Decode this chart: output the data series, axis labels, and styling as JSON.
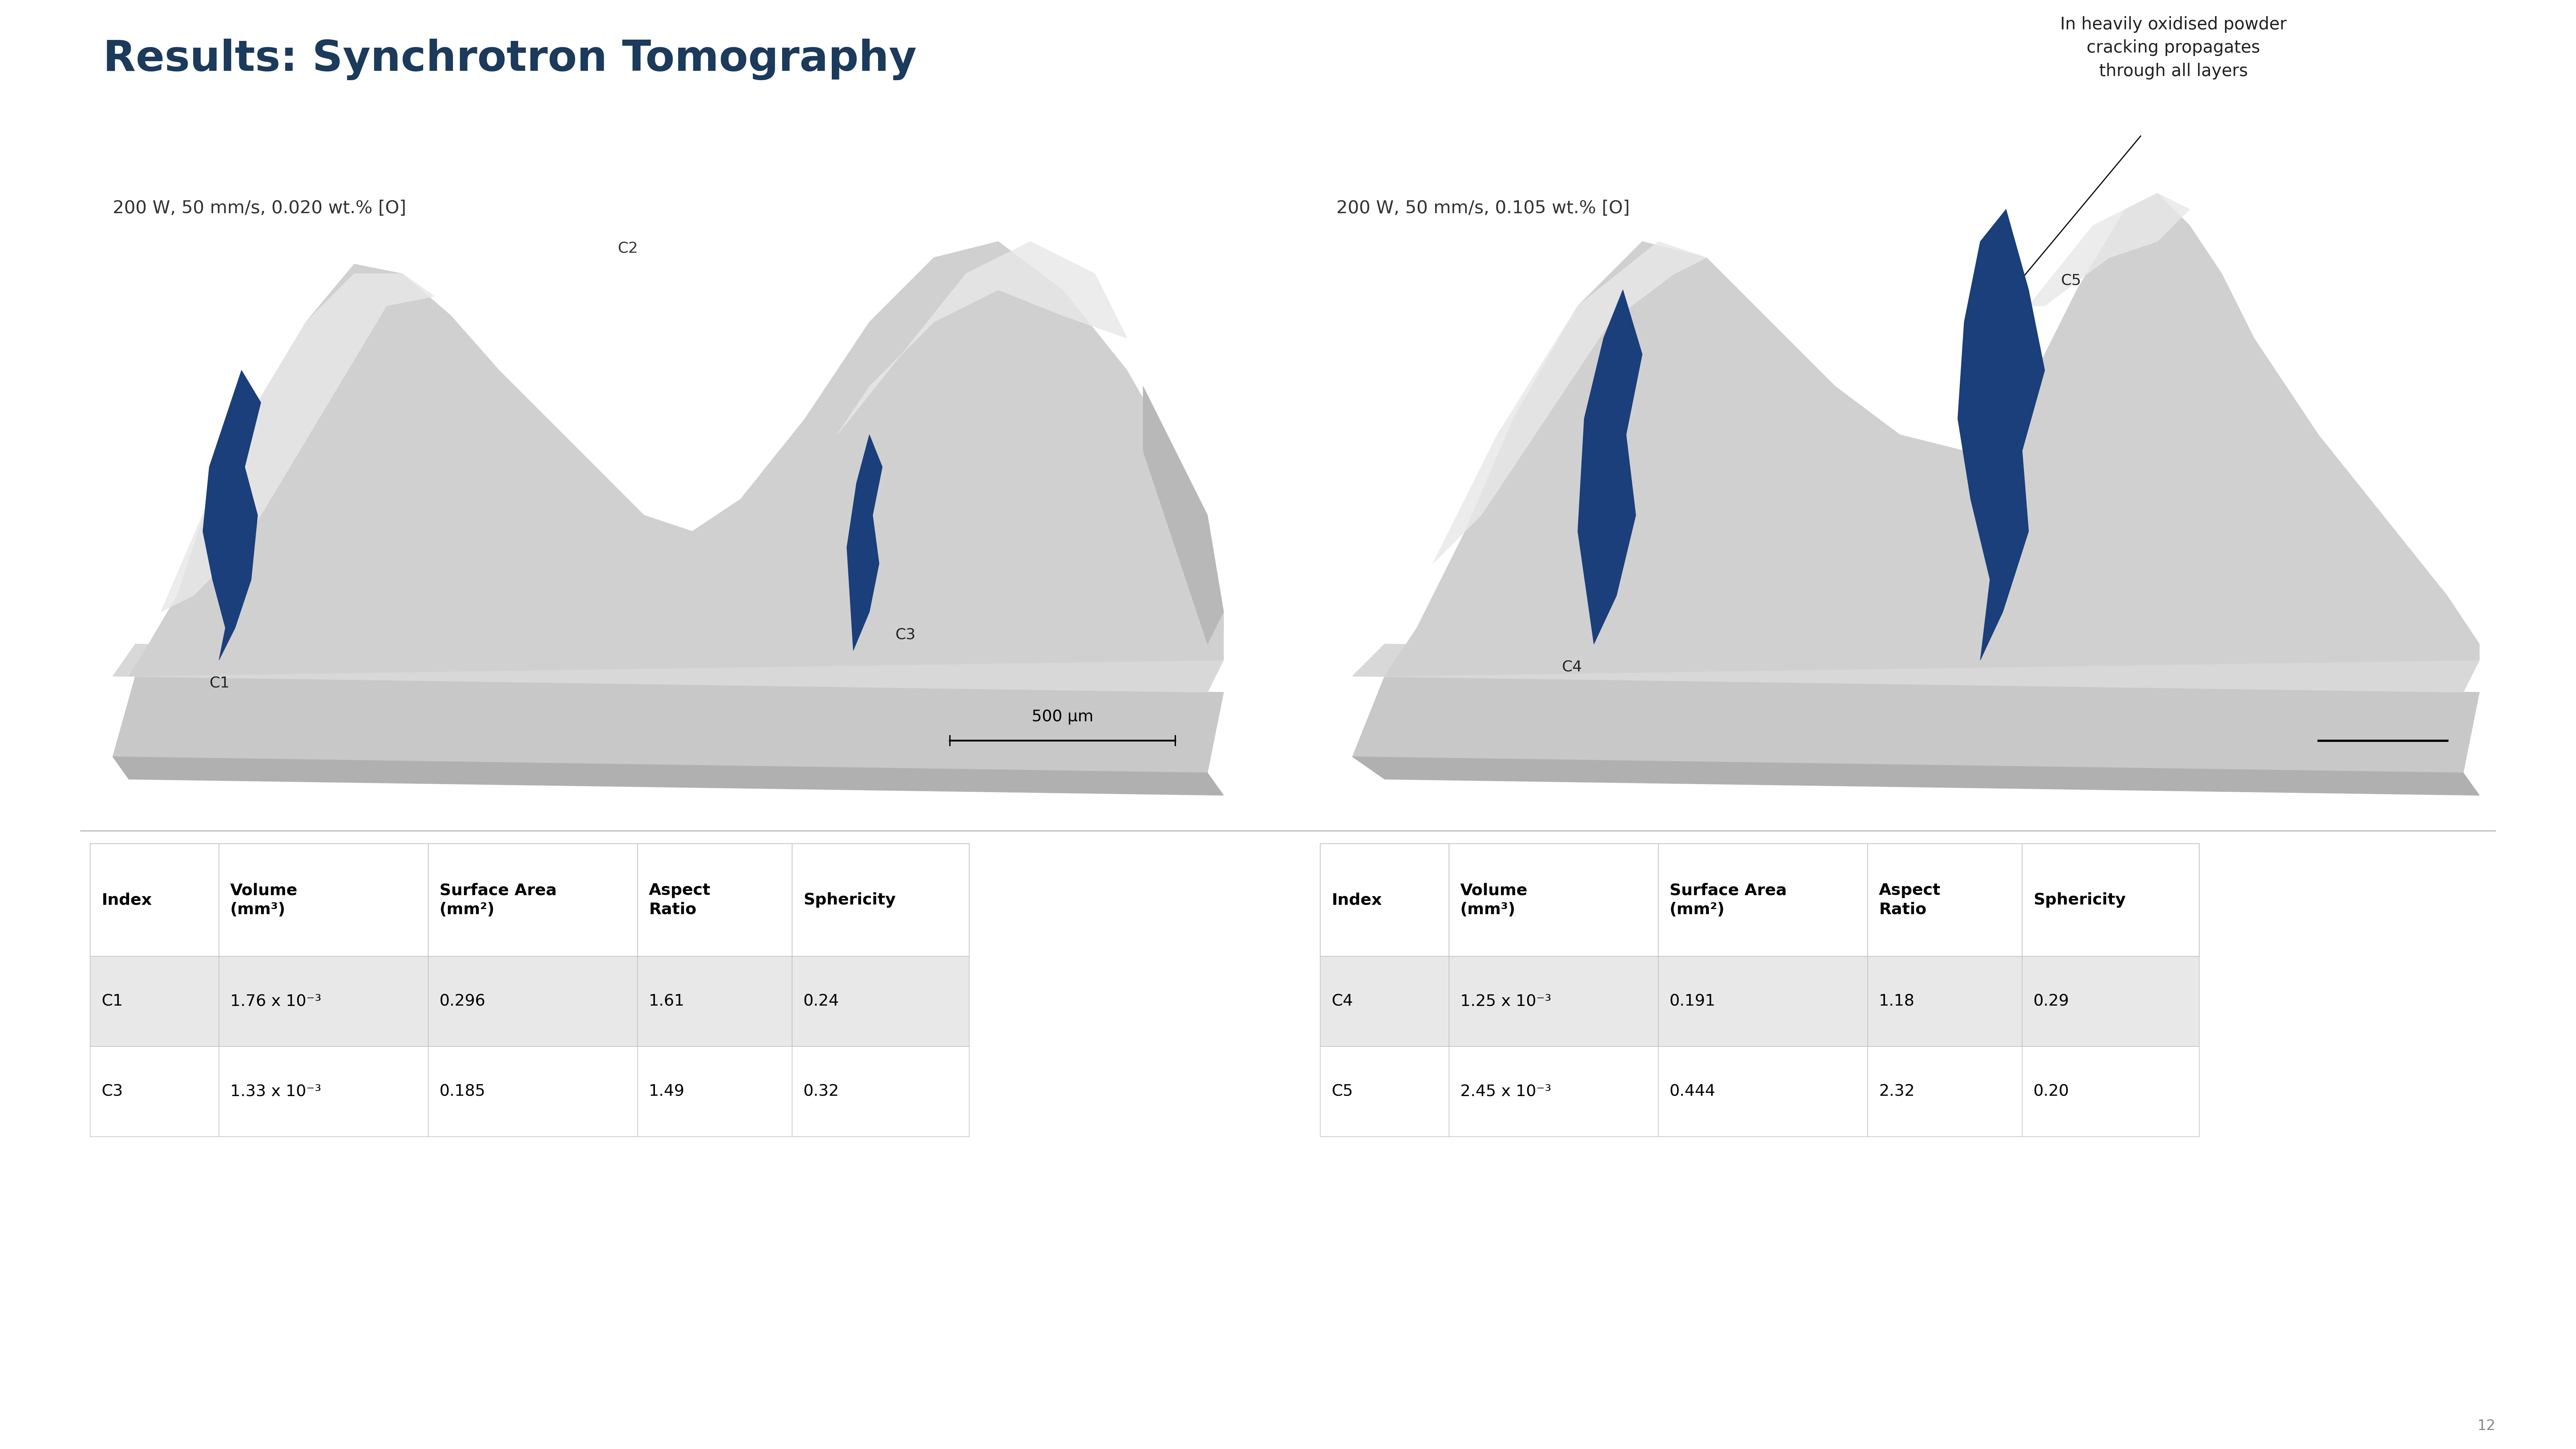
{
  "title": "Results: Synchrotron Tomography",
  "title_color": "#1b3a5c",
  "title_fontsize": 95,
  "bg_color": "#ffffff",
  "label_left": "200 W, 50 mm/s, 0.020 wt.% [O]",
  "label_right": "200 W, 50 mm/s, 0.105 wt.% [O]",
  "label_fontsize": 40,
  "label_color": "#333333",
  "annotation_text": "In heavily oxidised powder\ncracking propagates\nthrough all layers",
  "annotation_fontsize": 38,
  "annotation_color": "#222222",
  "scale_bar_left_text": "500 μm",
  "scale_bar_fontsize": 36,
  "table_header": [
    "Index",
    "Volume\n(mm³)",
    "Surface Area\n(mm²)",
    "Aspect\nRatio",
    "Sphericity"
  ],
  "table_left_data": [
    [
      "C1",
      "1.76 x 10⁻³",
      "0.296",
      "1.61",
      "0.24"
    ],
    [
      "C3",
      "1.33 x 10⁻³",
      "0.185",
      "1.49",
      "0.32"
    ]
  ],
  "table_right_data": [
    [
      "C4",
      "1.25 x 10⁻³",
      "0.191",
      "1.18",
      "0.29"
    ],
    [
      "C5",
      "2.45 x 10⁻³",
      "0.444",
      "2.32",
      "0.20"
    ]
  ],
  "table_header_fontsize": 36,
  "table_data_fontsize": 36,
  "table_row_colors": [
    "#e8e8e8",
    "#ffffff"
  ],
  "table_border_color": "#bbbbbb",
  "table_text_color": "#000000",
  "page_number": "12",
  "page_number_fontsize": 32,
  "page_number_color": "#888888"
}
